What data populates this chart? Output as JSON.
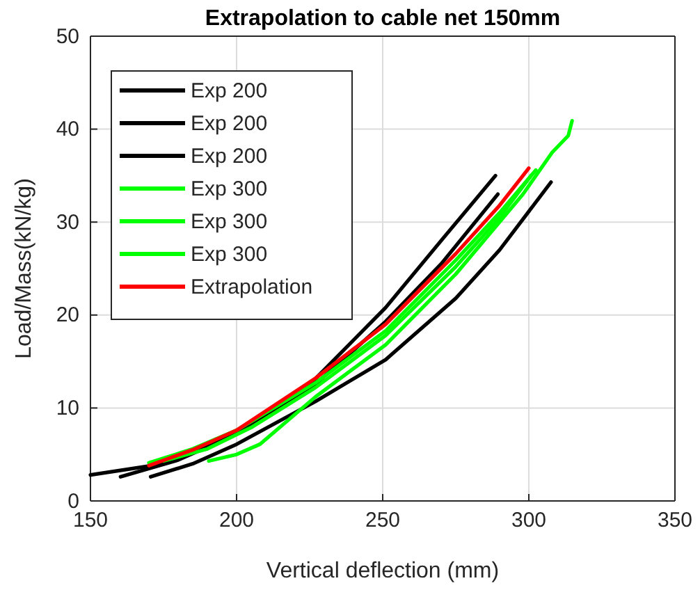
{
  "chart_data": {
    "type": "line",
    "title": "Extrapolation to cable net 150mm",
    "xlabel": "Vertical deflection (mm)",
    "ylabel": "Load/Mass(kN/kg)",
    "xlim": [
      150,
      350
    ],
    "ylim": [
      0,
      50
    ],
    "xticks": [
      150,
      200,
      250,
      300,
      350
    ],
    "yticks": [
      0,
      10,
      20,
      30,
      40,
      50
    ],
    "grid": true,
    "legend": "top left",
    "line_style": "solid",
    "marker": "none",
    "series": [
      {
        "name": "Exp 200",
        "color": "#000000",
        "x": [
          150,
          175,
          200,
          224,
          251,
          270,
          288.6
        ],
        "values": [
          2.8,
          4.0,
          7.4,
          12.2,
          20.8,
          28.0,
          35.0
        ]
      },
      {
        "name": "Exp 200",
        "color": "#000000",
        "x": [
          160.3,
          180,
          200,
          225,
          251,
          270,
          289.4
        ],
        "values": [
          2.6,
          4.4,
          7.2,
          12.0,
          19.3,
          25.5,
          33.0
        ]
      },
      {
        "name": "Exp 200",
        "color": "#000000",
        "x": [
          170.6,
          185,
          200,
          227,
          251,
          275,
          290,
          307.6
        ],
        "values": [
          2.6,
          4.0,
          6.1,
          10.7,
          15.2,
          21.8,
          27.0,
          34.3
        ]
      },
      {
        "name": "Exp 300",
        "color": "#00ff00",
        "x": [
          190.5,
          200,
          208,
          227,
          251,
          275,
          298,
          308,
          313.5,
          314.8
        ],
        "values": [
          4.3,
          5.0,
          6.1,
          11.2,
          16.8,
          24.4,
          33.0,
          37.5,
          39.3,
          40.9
        ]
      },
      {
        "name": "Exp 300",
        "color": "#00ff00",
        "x": [
          170,
          185,
          200,
          227,
          251,
          275,
          290,
          302.4
        ],
        "values": [
          4.1,
          5.6,
          7.6,
          12.7,
          18.3,
          25.9,
          31.0,
          35.6
        ]
      },
      {
        "name": "Exp 300",
        "color": "#00ff00",
        "x": [
          175,
          190,
          205,
          227,
          251,
          275,
          290,
          300.8
        ],
        "values": [
          4.3,
          5.6,
          7.9,
          12.2,
          17.8,
          25.2,
          30.5,
          35.0
        ]
      },
      {
        "name": "Extrapolation",
        "color": "#ff0000",
        "x": [
          170,
          185,
          200,
          227,
          251,
          275,
          290,
          300
        ],
        "values": [
          3.8,
          5.5,
          7.6,
          13.2,
          19.0,
          26.6,
          31.8,
          35.8
        ]
      }
    ]
  }
}
